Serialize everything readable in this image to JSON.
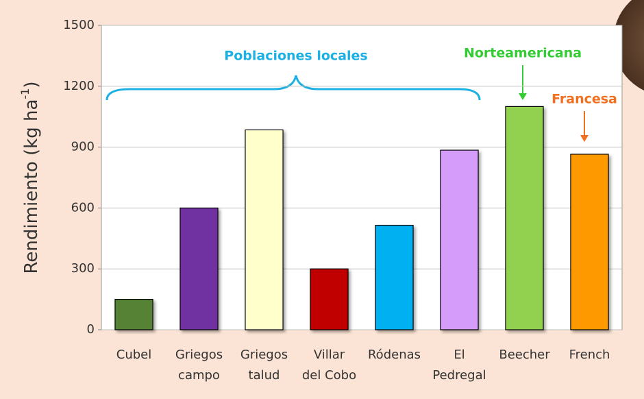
{
  "chart_data": {
    "type": "bar",
    "y_label": {
      "text": "Rendimiento (kg ha",
      "superscript": "-1",
      "suffix": ")"
    },
    "categories": [
      [
        "Cubel"
      ],
      [
        "Griegos",
        "campo"
      ],
      [
        "Griegos",
        "talud"
      ],
      [
        "Villar",
        "del Cobo"
      ],
      [
        "Ródenas"
      ],
      [
        "El",
        "Pedregal"
      ],
      [
        "Beecher"
      ],
      [
        "French"
      ]
    ],
    "values": [
      150,
      600,
      985,
      300,
      515,
      885,
      1100,
      865
    ],
    "colors": [
      "#548235",
      "#7030a0",
      "#ffffcc",
      "#c00000",
      "#00b0f0",
      "#d59cfa",
      "#92d050",
      "#ff9900"
    ],
    "ylim": [
      0,
      1500
    ],
    "yticks": [
      0,
      300,
      600,
      900,
      1200,
      1500
    ],
    "grid": true,
    "annotations": [
      {
        "text": "Poblaciones locales",
        "color": "#1cb0e4"
      },
      {
        "text": "Norteamericana",
        "color": "#33cc33"
      },
      {
        "text": "Francesa",
        "color": "#f07020"
      }
    ]
  }
}
